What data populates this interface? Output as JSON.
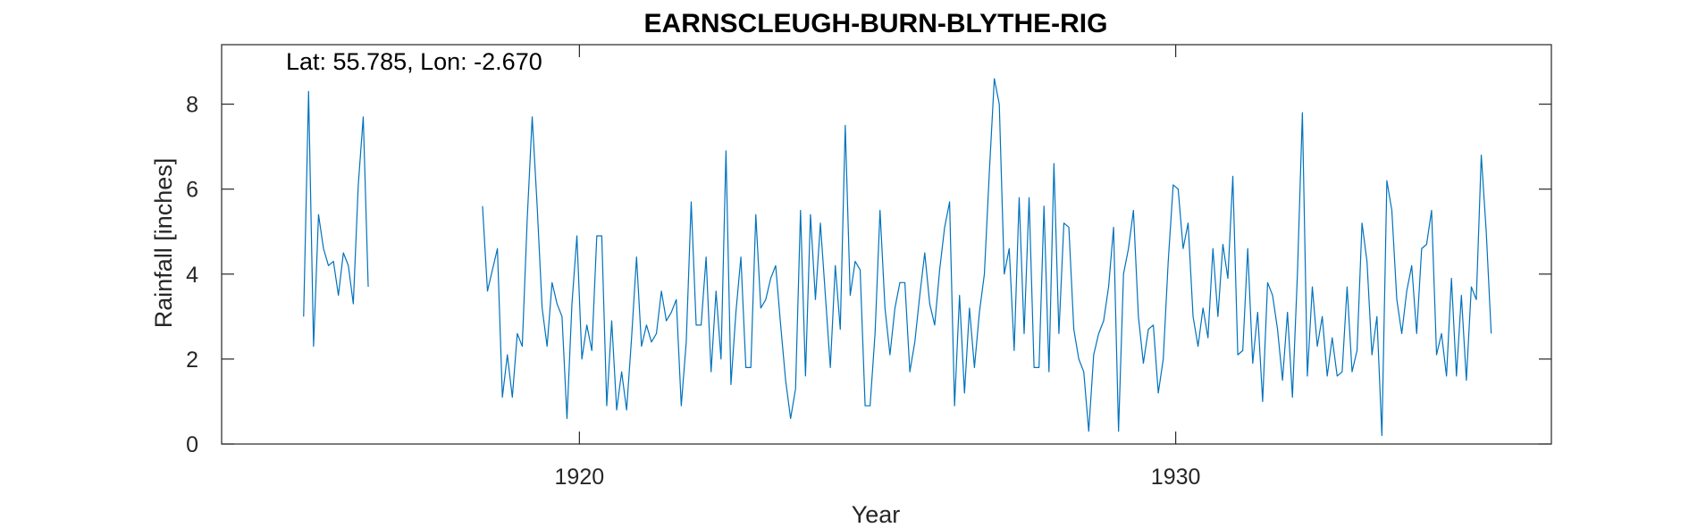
{
  "chart_data": {
    "type": "line",
    "title": "EARNSCLEUGH-BURN-BLYTHE-RIG",
    "annotation": "Lat: 55.785, Lon: -2.670",
    "xlabel": "Year",
    "ylabel": "Rainfall [inches]",
    "xlim": [
      1914,
      1936.3
    ],
    "ylim": [
      0,
      9.4
    ],
    "xticks": [
      1920,
      1930
    ],
    "xtick_labels": [
      "1920",
      "1930"
    ],
    "yticks": [
      0,
      2,
      4,
      6,
      8
    ],
    "ytick_labels": [
      "0",
      "2",
      "4",
      "6",
      "8"
    ],
    "grid": false,
    "series_color": "#0072BD",
    "segments": [
      {
        "x_start": 1915.375,
        "step": 0.08333,
        "values": [
          3.0,
          8.3,
          2.3,
          5.4,
          4.6,
          4.2,
          4.3,
          3.5,
          4.5,
          4.2,
          3.3,
          6.1,
          7.7,
          3.7
        ]
      },
      {
        "x_start": 1918.375,
        "step": 0.08333,
        "values": [
          5.6,
          3.6,
          4.1,
          4.6,
          1.1,
          2.1,
          1.1,
          2.6,
          2.3,
          5.3,
          7.7,
          5.6,
          3.2,
          2.3,
          3.8,
          3.3,
          3.0,
          0.6,
          3.3,
          4.9,
          2.0,
          2.8,
          2.2,
          4.9,
          4.9,
          0.9,
          2.9,
          0.8,
          1.7,
          0.8,
          2.5,
          4.4,
          2.3,
          2.8,
          2.4,
          2.6,
          3.6,
          2.9,
          3.1,
          3.4,
          0.9,
          2.4,
          5.7,
          2.8,
          2.8,
          4.4,
          1.7,
          3.6,
          2.0,
          6.9,
          1.4,
          3.1,
          4.4,
          1.8,
          1.8,
          5.4,
          3.2,
          3.4,
          3.9,
          4.2,
          2.8,
          1.5,
          0.6,
          1.3,
          5.5,
          1.6,
          5.4,
          3.4,
          5.2,
          3.5,
          1.8,
          4.2,
          2.7,
          7.5,
          3.5,
          4.3,
          4.1,
          0.9,
          0.9,
          2.6,
          5.5,
          3.2,
          2.1,
          3.2,
          3.8,
          3.8,
          1.7,
          2.4,
          3.5,
          4.5,
          3.3,
          2.8,
          4.1,
          5.1,
          5.7,
          0.9,
          3.5,
          1.2,
          3.2,
          1.8,
          3.1,
          4.0,
          6.4,
          8.6,
          8.0,
          4.0,
          4.6,
          2.2,
          5.8,
          2.6,
          5.8,
          1.8,
          1.8,
          5.6,
          1.7,
          6.6,
          2.6,
          5.2,
          5.1,
          2.7,
          2.0,
          1.7,
          0.3,
          2.1,
          2.6,
          2.9,
          3.7,
          5.1,
          0.3,
          4.0,
          4.6,
          5.5,
          3.0,
          1.9,
          2.7,
          2.8,
          1.2,
          2.0,
          4.3,
          6.1,
          6.0,
          4.6,
          5.2,
          3.0,
          2.3,
          3.2,
          2.5,
          4.6,
          3.0,
          4.7,
          3.9,
          6.3,
          2.1,
          2.2,
          4.6,
          1.9,
          3.1,
          1.0,
          3.8,
          3.5,
          2.7,
          1.5,
          3.1,
          1.1,
          4.0,
          7.8,
          1.6,
          3.7,
          2.3,
          3.0,
          1.6,
          2.5,
          1.6,
          1.7,
          3.7,
          1.7,
          2.2,
          5.2,
          4.3,
          2.1,
          3.0,
          0.2,
          6.2,
          5.5,
          3.4,
          2.6,
          3.6,
          4.2,
          2.6,
          4.6,
          4.7,
          5.5,
          2.1,
          2.6,
          1.6,
          3.9,
          1.6,
          3.5,
          1.5,
          3.7,
          3.4,
          6.8,
          5.0,
          2.6
        ]
      }
    ]
  }
}
